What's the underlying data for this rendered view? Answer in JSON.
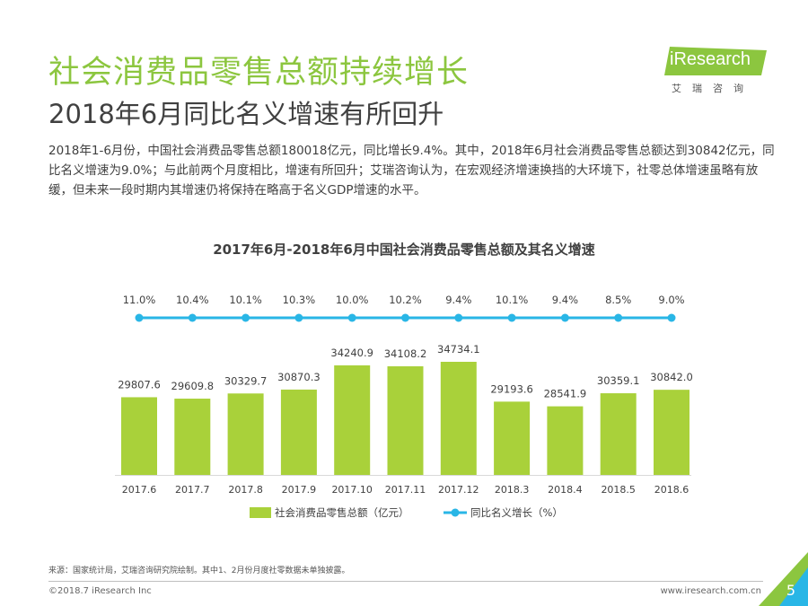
{
  "header": {
    "title": "社会消费品零售总额持续增长",
    "subtitle": "2018年6月同比名义增速有所回升",
    "description": "2018年1-6月份，中国社会消费品零售总额180018亿元，同比增长9.4%。其中，2018年6月社会消费品零售总额达到30842亿元，同比名义增速为9.0%；与此前两个月度相比，增速有所回升；艾瑞咨询认为，在宏观经济增速换挡的大环境下，社零总体增速虽略有放缓，但未来一段时期内其增速仍将保持在略高于名义GDP增速的水平。"
  },
  "logo": {
    "text": "iResearch",
    "cn": "艾瑞咨询"
  },
  "colors": {
    "accent": "#8cc63f",
    "bar": "#a9d13a",
    "line": "#29b6e6"
  },
  "chart_data": {
    "type": "bar",
    "title": "2017年6月-2018年6月中国社会消费品零售总额及其名义增速",
    "categories": [
      "2017.6",
      "2017.7",
      "2017.8",
      "2017.9",
      "2017.10",
      "2017.11",
      "2017.12",
      "2018.3",
      "2018.4",
      "2018.5",
      "2018.6"
    ],
    "series": [
      {
        "name": "社会消费品零售总额（亿元）",
        "type": "bar",
        "values": [
          29807.6,
          29609.8,
          30329.7,
          30870.3,
          34240.9,
          34108.2,
          34734.1,
          29193.6,
          28541.9,
          30359.1,
          30842.0
        ],
        "labels": [
          "29807.6",
          "29609.8",
          "30329.7",
          "30870.3",
          "34240.9",
          "34108.2",
          "34734.1",
          "29193.6",
          "28541.9",
          "30359.1",
          "30842.0"
        ]
      },
      {
        "name": "同比名义增长（%）",
        "type": "line",
        "values": [
          11.0,
          10.4,
          10.1,
          10.3,
          10.0,
          10.2,
          9.4,
          10.1,
          9.4,
          8.5,
          9.0
        ],
        "labels": [
          "11.0%",
          "10.4%",
          "10.1%",
          "10.3%",
          "10.0%",
          "10.2%",
          "9.4%",
          "10.1%",
          "9.4%",
          "8.5%",
          "9.0%"
        ]
      }
    ],
    "legend": [
      "社会消费品零售总额（亿元）",
      "同比名义增长（%）"
    ]
  },
  "footer": {
    "source": "来源：国家统计局，艾瑞咨询研究院绘制。其中1、2月份月度社零数据未单独披露。",
    "copyright": "©2018.7 iResearch Inc",
    "website": "www.iresearch.com.cn",
    "page": "5"
  }
}
